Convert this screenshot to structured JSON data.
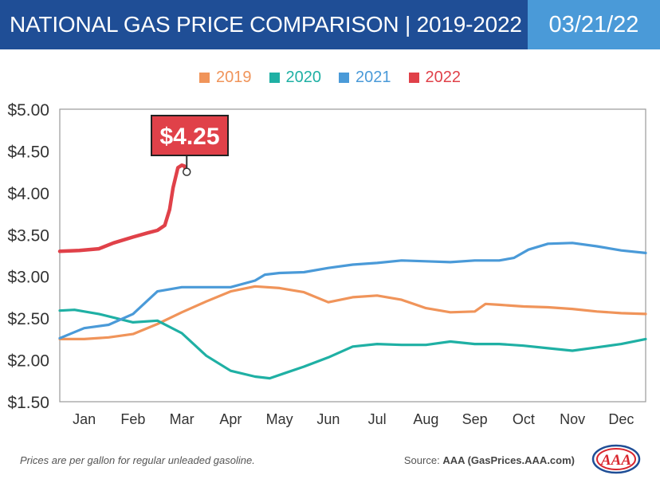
{
  "header": {
    "title": "NATIONAL GAS PRICE COMPARISON | 2019-2022",
    "date": "03/21/22"
  },
  "footer": {
    "note": "Prices are per gallon for regular unleaded gasoline.",
    "source_label": "Source:",
    "source_value": "AAA (GasPrices.AAA.com)",
    "logo_text": "AAA"
  },
  "chart_data": {
    "type": "line",
    "title": "NATIONAL GAS PRICE COMPARISON | 2019-2022",
    "xlabel": "",
    "ylabel": "",
    "x_categories": [
      "Jan",
      "Feb",
      "Mar",
      "Apr",
      "May",
      "Jun",
      "Jul",
      "Aug",
      "Sep",
      "Oct",
      "Nov",
      "Dec"
    ],
    "xlim": [
      0,
      12
    ],
    "ylim": [
      1.5,
      5.0
    ],
    "y_ticks": [
      1.5,
      2.0,
      2.5,
      3.0,
      3.5,
      4.0,
      4.5,
      5.0
    ],
    "y_tick_labels": [
      "$1.50",
      "$2.00",
      "$2.50",
      "$3.00",
      "$3.50",
      "$4.00",
      "$4.50",
      "$5.00"
    ],
    "grid": false,
    "legend_position": "top-center",
    "annotation": {
      "text": "$4.25",
      "x": 2.6,
      "y": 4.25
    },
    "series": [
      {
        "name": "2019",
        "color": "#f0945a",
        "points": [
          [
            0,
            2.25
          ],
          [
            0.5,
            2.25
          ],
          [
            1,
            2.27
          ],
          [
            1.5,
            2.31
          ],
          [
            2,
            2.43
          ],
          [
            2.5,
            2.57
          ],
          [
            3,
            2.7
          ],
          [
            3.5,
            2.82
          ],
          [
            4,
            2.88
          ],
          [
            4.5,
            2.86
          ],
          [
            5,
            2.81
          ],
          [
            5.5,
            2.69
          ],
          [
            6,
            2.75
          ],
          [
            6.5,
            2.77
          ],
          [
            7,
            2.72
          ],
          [
            7.5,
            2.62
          ],
          [
            8,
            2.57
          ],
          [
            8.5,
            2.58
          ],
          [
            8.72,
            2.67
          ],
          [
            9,
            2.66
          ],
          [
            9.5,
            2.64
          ],
          [
            10,
            2.63
          ],
          [
            10.5,
            2.61
          ],
          [
            11,
            2.58
          ],
          [
            11.5,
            2.56
          ],
          [
            12,
            2.55
          ]
        ]
      },
      {
        "name": "2020",
        "color": "#1fb0a4",
        "points": [
          [
            0,
            2.59
          ],
          [
            0.3,
            2.6
          ],
          [
            0.8,
            2.55
          ],
          [
            1.5,
            2.45
          ],
          [
            2,
            2.47
          ],
          [
            2.5,
            2.32
          ],
          [
            3,
            2.05
          ],
          [
            3.5,
            1.87
          ],
          [
            4,
            1.8
          ],
          [
            4.3,
            1.78
          ],
          [
            4.6,
            1.84
          ],
          [
            5,
            1.92
          ],
          [
            5.5,
            2.03
          ],
          [
            6,
            2.16
          ],
          [
            6.5,
            2.19
          ],
          [
            7,
            2.18
          ],
          [
            7.5,
            2.18
          ],
          [
            8,
            2.22
          ],
          [
            8.5,
            2.19
          ],
          [
            9,
            2.19
          ],
          [
            9.5,
            2.17
          ],
          [
            10,
            2.14
          ],
          [
            10.5,
            2.11
          ],
          [
            11,
            2.15
          ],
          [
            11.5,
            2.19
          ],
          [
            12,
            2.25
          ]
        ]
      },
      {
        "name": "2021",
        "color": "#4a9ad8",
        "points": [
          [
            0,
            2.26
          ],
          [
            0.5,
            2.38
          ],
          [
            1,
            2.42
          ],
          [
            1.5,
            2.55
          ],
          [
            2,
            2.82
          ],
          [
            2.5,
            2.87
          ],
          [
            3,
            2.87
          ],
          [
            3.5,
            2.87
          ],
          [
            4,
            2.95
          ],
          [
            4.2,
            3.02
          ],
          [
            4.5,
            3.04
          ],
          [
            5,
            3.05
          ],
          [
            5.5,
            3.1
          ],
          [
            6,
            3.14
          ],
          [
            6.5,
            3.16
          ],
          [
            7,
            3.19
          ],
          [
            7.5,
            3.18
          ],
          [
            8,
            3.17
          ],
          [
            8.5,
            3.19
          ],
          [
            9,
            3.19
          ],
          [
            9.3,
            3.22
          ],
          [
            9.6,
            3.32
          ],
          [
            10,
            3.39
          ],
          [
            10.5,
            3.4
          ],
          [
            11,
            3.36
          ],
          [
            11.5,
            3.31
          ],
          [
            12,
            3.28
          ]
        ]
      },
      {
        "name": "2022",
        "color": "#e04149",
        "points": [
          [
            0,
            3.3
          ],
          [
            0.4,
            3.31
          ],
          [
            0.8,
            3.33
          ],
          [
            1.1,
            3.4
          ],
          [
            1.5,
            3.47
          ],
          [
            1.8,
            3.52
          ],
          [
            2.0,
            3.55
          ],
          [
            2.15,
            3.61
          ],
          [
            2.25,
            3.8
          ],
          [
            2.32,
            4.06
          ],
          [
            2.42,
            4.3
          ],
          [
            2.5,
            4.33
          ],
          [
            2.55,
            4.32
          ],
          [
            2.6,
            4.25
          ]
        ]
      }
    ]
  }
}
